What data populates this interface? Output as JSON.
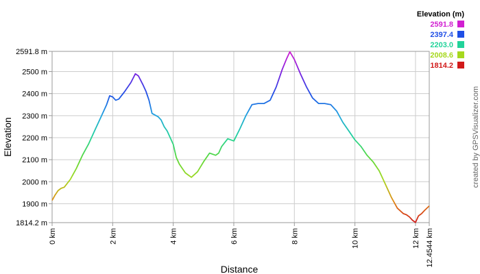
{
  "chart_data": {
    "type": "line",
    "xlabel": "Distance",
    "ylabel": "Elevation",
    "xlim": [
      0,
      12.4544
    ],
    "ylim": [
      1814.2,
      2591.8
    ],
    "x_ticks": [
      {
        "value": 0,
        "label": "0 km"
      },
      {
        "value": 2,
        "label": "2 km"
      },
      {
        "value": 4,
        "label": "4 km"
      },
      {
        "value": 6,
        "label": "6 km"
      },
      {
        "value": 8,
        "label": "8 km"
      },
      {
        "value": 10,
        "label": "10 km"
      },
      {
        "value": 12,
        "label": "12 km"
      },
      {
        "value": 12.4544,
        "label": "12.4544 km"
      }
    ],
    "y_ticks": [
      {
        "value": 1814.2,
        "label": "1814.2 m"
      },
      {
        "value": 1900,
        "label": "1900 m"
      },
      {
        "value": 2000,
        "label": "2000 m"
      },
      {
        "value": 2100,
        "label": "2100 m"
      },
      {
        "value": 2200,
        "label": "2200 m"
      },
      {
        "value": 2300,
        "label": "2300 m"
      },
      {
        "value": 2400,
        "label": "2400 m"
      },
      {
        "value": 2500,
        "label": "2500 m"
      },
      {
        "value": 2591.8,
        "label": "2591.8 m"
      }
    ],
    "legend": {
      "title": "Elevation (m)",
      "placement": "top-right",
      "entries": [
        {
          "label": "2591.8",
          "color": "#d11fd1"
        },
        {
          "label": "2397.4",
          "color": "#1f4fe6"
        },
        {
          "label": "2203.0",
          "color": "#22d39a"
        },
        {
          "label": "2008.6",
          "color": "#a6d81e"
        },
        {
          "label": "1814.2",
          "color": "#d11a1a"
        }
      ]
    },
    "grid": true,
    "series": [
      {
        "x": [
          0,
          0.1,
          0.2,
          0.3,
          0.4,
          0.6,
          0.8,
          1.0,
          1.2,
          1.4,
          1.6,
          1.8,
          1.9,
          2.0,
          2.1,
          2.2,
          2.4,
          2.6,
          2.75,
          2.85,
          3.0,
          3.1,
          3.2,
          3.3,
          3.5,
          3.6,
          3.7,
          3.8,
          4.0,
          4.1,
          4.2,
          4.3,
          4.4,
          4.5,
          4.6,
          4.8,
          5.0,
          5.2,
          5.4,
          5.5,
          5.6,
          5.8,
          5.9,
          6.0,
          6.2,
          6.4,
          6.6,
          6.8,
          7.0,
          7.2,
          7.4,
          7.6,
          7.75,
          7.85,
          8.0,
          8.2,
          8.4,
          8.6,
          8.8,
          9.0,
          9.2,
          9.4,
          9.6,
          9.8,
          10.0,
          10.2,
          10.4,
          10.6,
          10.8,
          11.0,
          11.2,
          11.4,
          11.6,
          11.7,
          11.8,
          11.9,
          12.0,
          12.1,
          12.2,
          12.3,
          12.4544
        ],
        "y": [
          1915,
          1940,
          1960,
          1970,
          1975,
          2010,
          2060,
          2120,
          2170,
          2230,
          2290,
          2350,
          2390,
          2385,
          2370,
          2375,
          2410,
          2450,
          2490,
          2480,
          2440,
          2410,
          2370,
          2310,
          2295,
          2280,
          2250,
          2230,
          2170,
          2110,
          2080,
          2060,
          2040,
          2030,
          2020,
          2045,
          2090,
          2130,
          2120,
          2130,
          2160,
          2195,
          2190,
          2185,
          2240,
          2300,
          2350,
          2355,
          2355,
          2370,
          2430,
          2510,
          2560,
          2590,
          2555,
          2490,
          2430,
          2380,
          2355,
          2355,
          2350,
          2320,
          2270,
          2230,
          2190,
          2160,
          2120,
          2090,
          2050,
          1990,
          1930,
          1880,
          1855,
          1850,
          1840,
          1825,
          1815,
          1845,
          1855,
          1870,
          1890
        ]
      }
    ]
  },
  "credit": "created by GPSVisualizer.com"
}
